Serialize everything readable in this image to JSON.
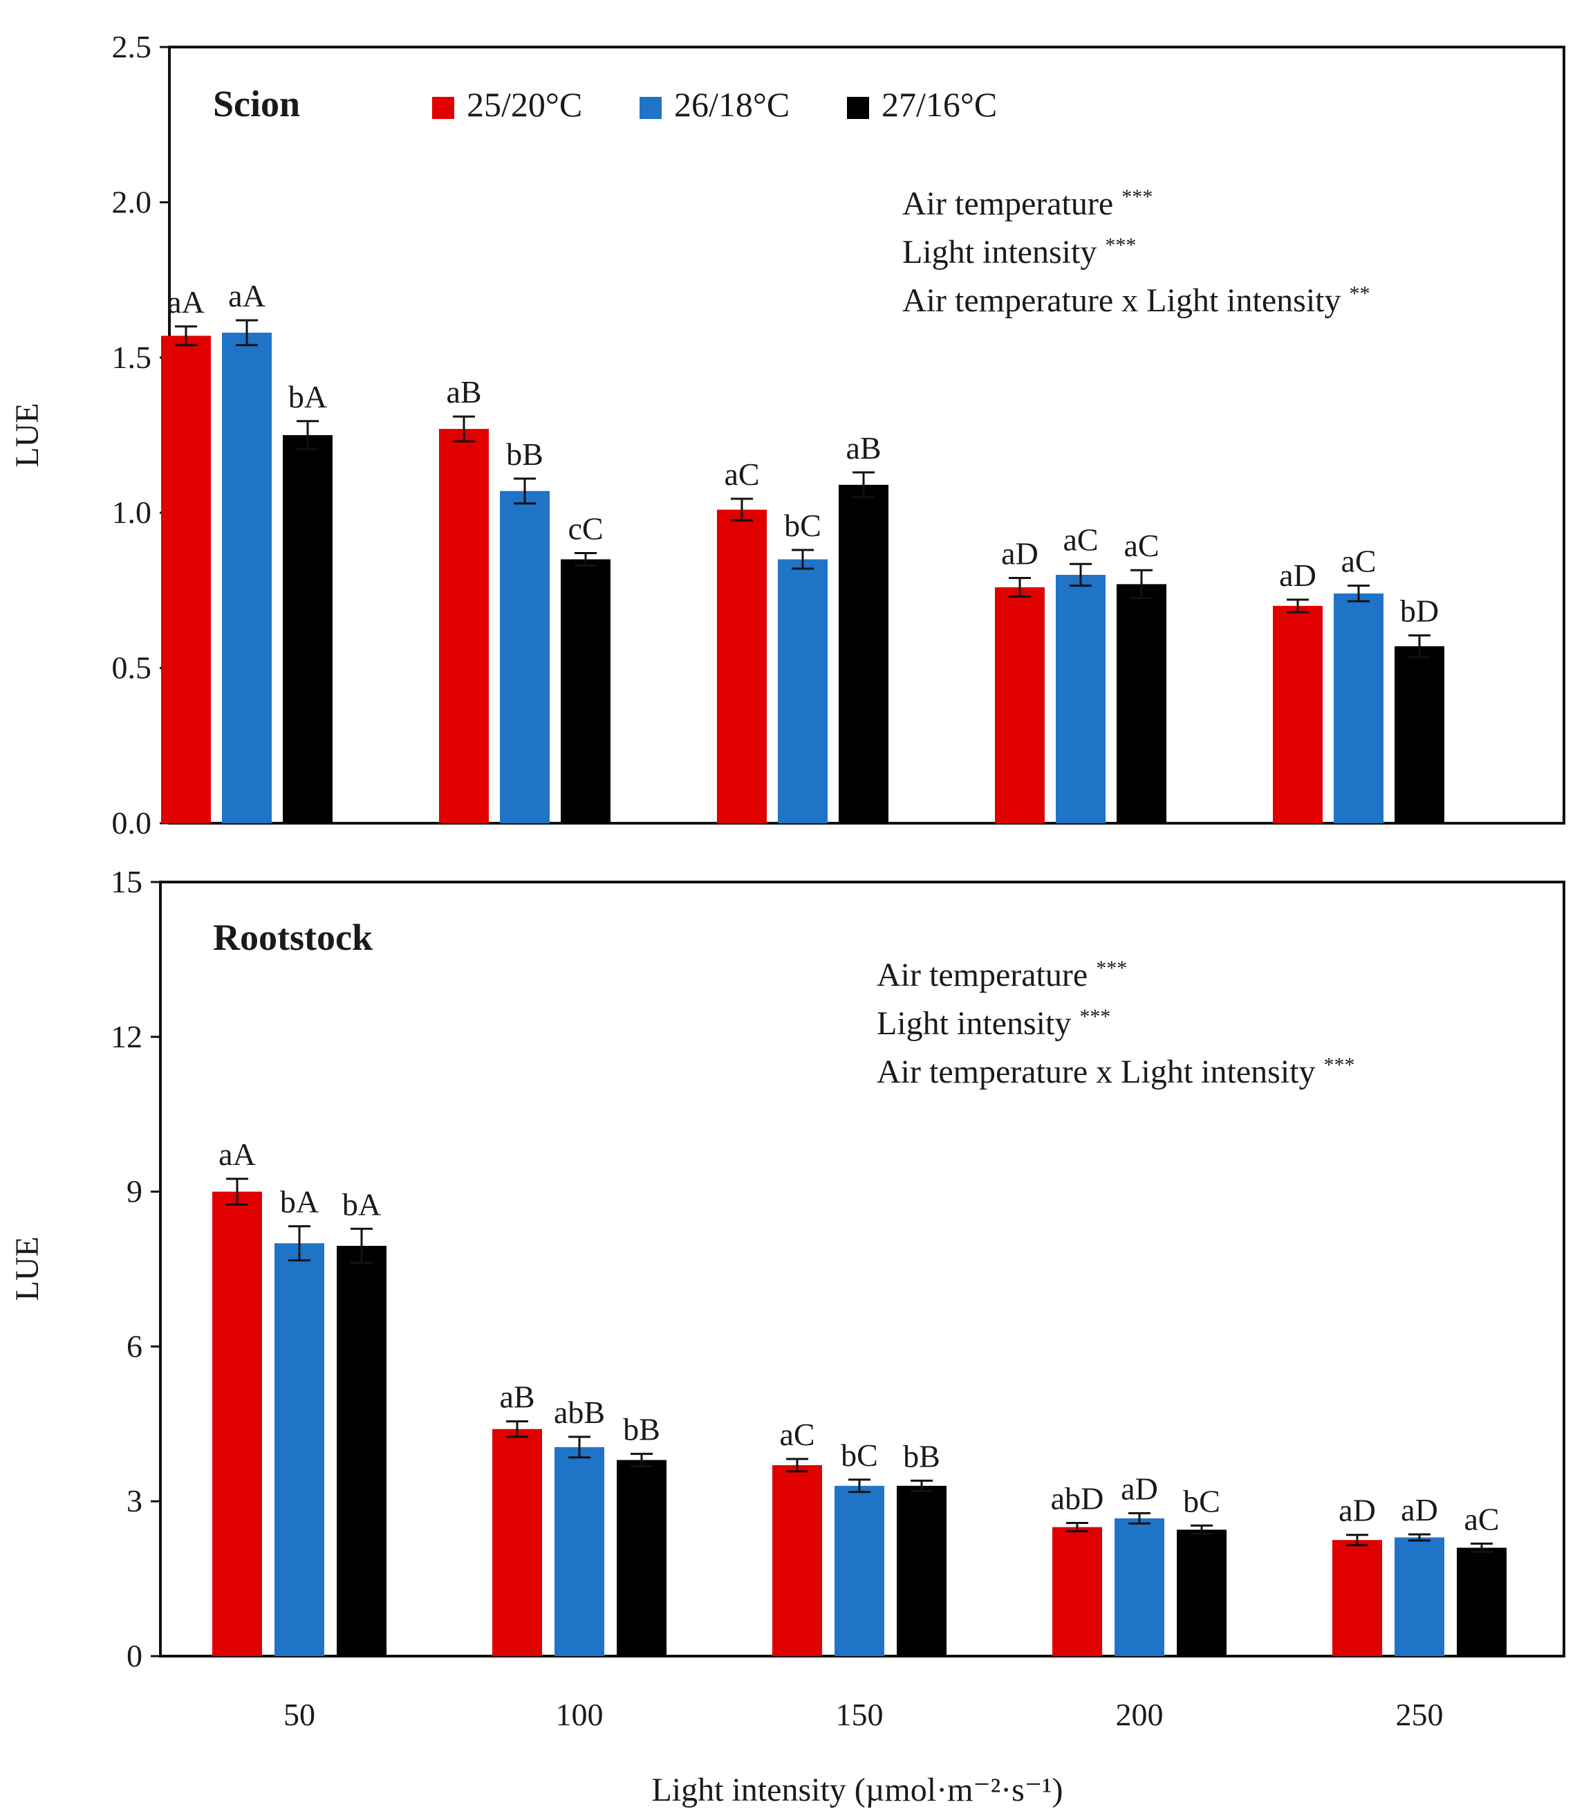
{
  "chart_data": [
    {
      "type": "bar",
      "title": "Scion",
      "xlabel": "",
      "ylabel": "LUE",
      "ylim": [
        0,
        2.5
      ],
      "yticks": [
        "0.0",
        "0.5",
        "1.0",
        "1.5",
        "2.0",
        "2.5"
      ],
      "categories": [
        "50",
        "100",
        "150",
        "200",
        "250"
      ],
      "series": [
        {
          "name": "25/20°C",
          "color": "#e00000",
          "values": [
            1.57,
            1.27,
            1.01,
            0.76,
            0.7
          ],
          "errors": [
            0.03,
            0.04,
            0.035,
            0.03,
            0.02
          ],
          "labels": [
            "aA",
            "aB",
            "aC",
            "aD",
            "aD"
          ]
        },
        {
          "name": "26/18°C",
          "color": "#1f74c8",
          "values": [
            1.58,
            1.07,
            0.85,
            0.8,
            0.74
          ],
          "errors": [
            0.04,
            0.04,
            0.03,
            0.035,
            0.025
          ],
          "labels": [
            "aA",
            "bB",
            "bC",
            "aC",
            "aC"
          ]
        },
        {
          "name": "27/16°C",
          "color": "#000000",
          "values": [
            1.25,
            0.85,
            1.09,
            0.77,
            0.57
          ],
          "errors": [
            0.045,
            0.02,
            0.04,
            0.045,
            0.035
          ],
          "labels": [
            "bA",
            "cC",
            "aB",
            "aC",
            "bD"
          ]
        }
      ],
      "stats": [
        {
          "text": "Air temperature",
          "sig": "***"
        },
        {
          "text": "Light intensity",
          "sig": "***"
        },
        {
          "text": "Air temperature x Light intensity",
          "sig": "**"
        }
      ],
      "legend_position": "top"
    },
    {
      "type": "bar",
      "title": "Rootstock",
      "xlabel": "Light intensity (µmol·m⁻²·s⁻¹)",
      "ylabel": "LUE",
      "ylim": [
        0,
        15
      ],
      "yticks": [
        "0",
        "3",
        "6",
        "9",
        "12",
        "15"
      ],
      "categories": [
        "50",
        "100",
        "150",
        "200",
        "250"
      ],
      "series": [
        {
          "name": "25/20°C",
          "color": "#e00000",
          "values": [
            9.0,
            4.4,
            3.7,
            2.5,
            2.25
          ],
          "errors": [
            0.25,
            0.15,
            0.12,
            0.08,
            0.1
          ],
          "labels": [
            "aA",
            "aB",
            "aC",
            "abD",
            "aD"
          ]
        },
        {
          "name": "26/18°C",
          "color": "#1f74c8",
          "values": [
            8.0,
            4.05,
            3.3,
            2.67,
            2.3
          ],
          "errors": [
            0.33,
            0.2,
            0.12,
            0.1,
            0.06
          ],
          "labels": [
            "bA",
            "abB",
            "bC",
            "aD",
            "aD"
          ]
        },
        {
          "name": "27/16°C",
          "color": "#000000",
          "values": [
            7.95,
            3.8,
            3.3,
            2.45,
            2.1
          ],
          "errors": [
            0.33,
            0.12,
            0.1,
            0.08,
            0.08
          ],
          "labels": [
            "bA",
            "bB",
            "bB",
            "bC",
            "aC"
          ]
        }
      ],
      "stats": [
        {
          "text": "Air temperature",
          "sig": "***"
        },
        {
          "text": "Light intensity",
          "sig": "***"
        },
        {
          "text": "Air temperature x Light intensity",
          "sig": "***"
        }
      ],
      "legend_position": "none"
    }
  ]
}
